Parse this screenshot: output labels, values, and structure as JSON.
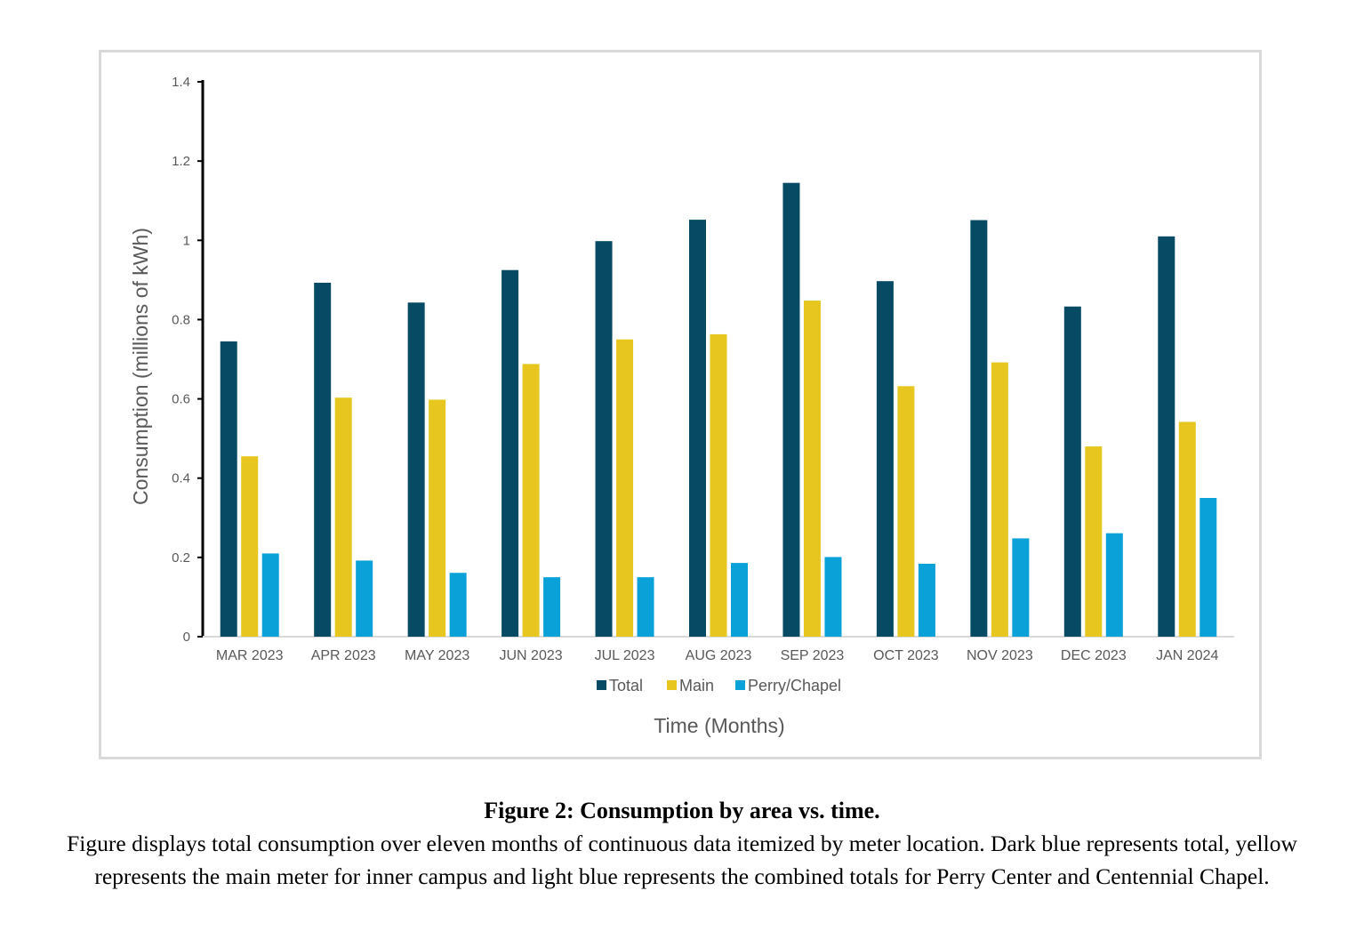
{
  "chart_data": {
    "type": "bar",
    "title": "",
    "xlabel": "Time (Months)",
    "ylabel": "Consumption (millions of kWh)",
    "ylim": [
      0,
      1.4
    ],
    "yticks": [
      0,
      0.2,
      0.4,
      0.6,
      0.8,
      1,
      1.2,
      1.4
    ],
    "ytick_labels": [
      "0",
      "0.2",
      "0.4",
      "0.6",
      "0.8",
      "1",
      "1.2",
      "1.4"
    ],
    "grid": false,
    "legend_position": "bottom",
    "categories": [
      "MAR 2023",
      "APR 2023",
      "MAY 2023",
      "JUN 2023",
      "JUL 2023",
      "AUG 2023",
      "SEP 2023",
      "OCT 2023",
      "NOV 2023",
      "DEC 2023",
      "JAN 2024"
    ],
    "series": [
      {
        "name": "Total",
        "color": "#064a64",
        "values": [
          0.745,
          0.893,
          0.843,
          0.925,
          0.998,
          1.052,
          1.145,
          0.897,
          1.051,
          0.833,
          1.01
        ]
      },
      {
        "name": "Main",
        "color": "#e7c71f",
        "values": [
          0.455,
          0.603,
          0.598,
          0.688,
          0.75,
          0.763,
          0.848,
          0.632,
          0.692,
          0.48,
          0.542
        ]
      },
      {
        "name": "Perry/Chapel",
        "color": "#0aa1d9",
        "values": [
          0.21,
          0.192,
          0.161,
          0.15,
          0.15,
          0.186,
          0.201,
          0.184,
          0.248,
          0.261,
          0.35
        ]
      }
    ]
  },
  "caption": {
    "title": "Figure 2: Consumption by area vs. time.",
    "body": "Figure displays total consumption over eleven months of continuous data itemized by meter location. Dark blue represents total, yellow represents the main meter for inner campus and light blue represents the combined totals for Perry Center and Centennial Chapel."
  }
}
